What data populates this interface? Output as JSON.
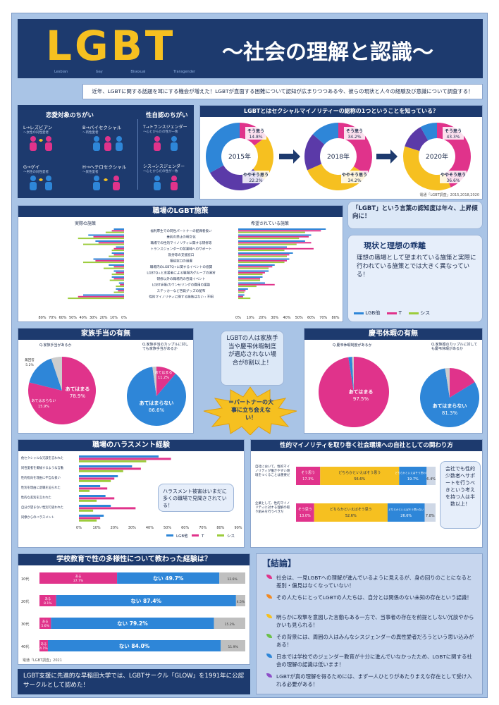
{
  "header": {
    "title_logo": "LGBT",
    "subtitle": "〜社会の理解と認識〜",
    "logo_sub": [
      "Lesbian",
      "Gay",
      "Bisexual",
      "Transgender"
    ]
  },
  "intro": "近年、LGBTに関する話題を耳にする機会が増えた！LGBTが直面する困難について認知が広まりつつある今、彼らの現状と人々の経験及び意識について調査する！",
  "definitions": {
    "left_title": "恋愛対象のちがい",
    "right_title": "性自認のちがい",
    "items": [
      {
        "key": "L",
        "label": "L→レズビアン",
        "sub": "〜女性の同性愛者"
      },
      {
        "key": "B",
        "label": "B→バイセクシャル",
        "sub": "〜両性愛者"
      },
      {
        "key": "G",
        "label": "G→ゲイ",
        "sub": "〜男性の同性愛者"
      },
      {
        "key": "H",
        "label": "H→ヘテロセクシャル",
        "sub": "〜異性愛者"
      },
      {
        "key": "T",
        "label": "T→トランスジェンダー",
        "sub": "〜心とからだの性が一致"
      },
      {
        "key": "C",
        "label": "シス→シスジェンダー",
        "sub": "〜心とからだの性が一致"
      }
    ]
  },
  "awareness": {
    "title": "LGBTとはセクシャルマイノリティーの総称の1つということを知っている？",
    "source": "電通「LGBT調査」2015,2018,2020",
    "charts": [
      {
        "year": "2015年",
        "segments": [
          {
            "label": "そう思う",
            "value": 14.8
          },
          {
            "label": "ややそう思う",
            "value": 22.2
          },
          {
            "label": "あまりそう思わない",
            "value": 30.0
          },
          {
            "label": "そう思わない",
            "value": 33.0
          }
        ],
        "labels_shown": [
          "そう思う",
          "14.8%",
          "ややそう思う",
          "22.2%"
        ]
      },
      {
        "year": "2018年",
        "segments": [
          {
            "label": "そう思う",
            "value": 34.2
          },
          {
            "label": "ややそう思う",
            "value": 34.2
          },
          {
            "label": "あまりそう思わない",
            "value": 18.0
          },
          {
            "label": "そう思わない",
            "value": 13.6
          }
        ],
        "labels_shown": [
          "そう思う",
          "34.2%",
          "ややそう思う",
          "34.2%"
        ]
      },
      {
        "year": "2020年",
        "segments": [
          {
            "label": "そう思う",
            "value": 43.3
          },
          {
            "label": "ややそう思う",
            "value": 36.6
          },
          {
            "label": "あまりそう思わない",
            "value": 12.0
          },
          {
            "label": "そう思わない",
            "value": 8.1
          }
        ],
        "labels_shown": [
          "そう思う",
          "43.3%",
          "ややそう思う",
          "36.6%"
        ]
      }
    ],
    "callout": "「LGBT」という言葉の認知度は年々、上昇傾向に！"
  },
  "workplace": {
    "title": "職場のLGBT施策",
    "left_label": "実際の施策",
    "right_label": "希望されている施策",
    "items": [
      "福利厚生での同性パートナーの配偶者扱い",
      "差別の禁止の明文化",
      "職場での性的マイノリティに関する研修等",
      "トランスジェンダーの就業時へのサポート",
      "就労等の支援窓口",
      "相談窓口の設置",
      "職場内のLGBTQ+に関するイベントの協賛",
      "LGBTQ+と支援者による職場内グループの運営",
      "研修以外の職場内の啓発イベント",
      "LGBT手帳/カウンセリングの費用の援助",
      "ステッカーなど啓発グッズの配布",
      "性的マイノリティに関する施策はない・不明"
    ],
    "axis_left": [
      "80%",
      "70%",
      "60%",
      "50%",
      "40%",
      "30%",
      "20%",
      "10%",
      "0%"
    ],
    "axis_right": [
      "0%",
      "10%",
      "20%",
      "30%",
      "40%",
      "50%",
      "60%",
      "70%",
      "80%"
    ],
    "legend": [
      {
        "name": "LGB他",
        "color": "#2e86d8"
      },
      {
        "name": "T",
        "color": "#e0338b"
      },
      {
        "name": "シス",
        "color": "#9ccc3c"
      }
    ],
    "legend_subs": [
      "(ゲイ・バイ・アセクシャル等)",
      "(トランスジェンダー)",
      "(シスジェンダー)"
    ]
  },
  "gap": {
    "title": "現状と理想の乖離",
    "body": "理想の職場として望まれている施策と実際に行われている施策とでは大きく異なっている！"
  },
  "family": {
    "title": "家族手当の有無",
    "q1": "Q.家族手当があるか",
    "q2": "Q.家族手当のカップルに対しても家族手当があるか",
    "pie1": [
      {
        "label": "あてはまる",
        "value": 78.9
      },
      {
        "label": "あてはまらない",
        "value": 15.9
      },
      {
        "label": "無回答",
        "value": 5.2
      }
    ],
    "pie2": [
      {
        "label": "あてはまる",
        "value": 11.2
      },
      {
        "label": "あてはまらない",
        "value": 86.6
      },
      {
        "label": "無回答",
        "value": 2.2
      }
    ],
    "labels": {
      "a": "あてはまる",
      "a_v": "78.9%",
      "b": "あてはまらない",
      "b_v": "15.9%",
      "c": "無回答",
      "c_v": "5.2%",
      "d": "あてはまらない",
      "d_v": "86.6%",
      "e": "あてはまる",
      "e_v": "11.2%"
    }
  },
  "center_bubble": "LGBTの人は家族手当や慶弔休暇制度が適応されない場合が8割以上！",
  "starburst": "＝パートナーの大事に立ち会えない！",
  "condolence": {
    "title": "慶弔休暇の有無",
    "q1": "Q.慶弔休暇制度があるか",
    "q2": "Q.家族婚のカップルに対しても慶弔休暇があるか",
    "pie1": [
      {
        "label": "あてはまる",
        "value": 97.5
      },
      {
        "label": "あてはまらない",
        "value": 1.7
      },
      {
        "label": "無回答",
        "value": 0.8
      }
    ],
    "pie2": [
      {
        "label": "あてはまる",
        "value": 16.2
      },
      {
        "label": "あてはまらない",
        "value": 81.3
      },
      {
        "label": "無回答",
        "value": 2.5
      }
    ],
    "labels": {
      "a": "あてはまる",
      "a_v": "97.5%",
      "b": "あてはまらない",
      "b_v": "81.3%"
    }
  },
  "harassment": {
    "title": "職場のハラスメント経験",
    "items": [
      "他セクシャルな冗談を言われた",
      "同性愛者を揶揄するような言動",
      "性的指向を理由に不当な扱い",
      "性別を理由に退職を迫られた",
      "性的な差別を言われた",
      "自分が望まない性別で扱われた",
      "同僚からのハラスメント"
    ],
    "axis": [
      "0%",
      "10%",
      "20%",
      "30%",
      "40%",
      "50%",
      "60%",
      "70%",
      "80%",
      "90%"
    ],
    "callout": "ハラスメント被害はいまだに多くの職場で見聞きされている！",
    "legend": [
      {
        "name": "LGB他",
        "color": "#2e86d8"
      },
      {
        "name": "T",
        "color": "#e0338b"
      },
      {
        "name": "シス",
        "color": "#9ccc3c"
      }
    ]
  },
  "company": {
    "title": "性的マイノリティを取り巻く社会環境への自社としての関わり方",
    "row1_label": "自社において、性的マイノリティが働きやすい環境をつくることは重要だ",
    "row2_label": "企業として、性的マイノリティに対する理解の取り組みを行うべきだ",
    "row1": [
      {
        "label": "そう思う",
        "value": 17.3
      },
      {
        "label": "どちらかといえばそう思う",
        "value": 56.6
      },
      {
        "label": "どちらかといえばそう思わない",
        "value": 19.7
      },
      {
        "label": "",
        "value": 6.4
      }
    ],
    "row2": [
      {
        "label": "そう思う",
        "value": 13.0
      },
      {
        "label": "どちらかといえばそう思う",
        "value": 52.6
      },
      {
        "label": "どちらかといえばそう思わない",
        "value": 26.6
      },
      {
        "label": "",
        "value": 7.8
      }
    ],
    "callout": "会社でも性的少数者へサポートを行うべきという考えを持つ人は半数以上！"
  },
  "education": {
    "title": "学校教育で性の多様性について教わった経験は？",
    "rows": [
      {
        "age": "10代",
        "yes": 37.7,
        "no": 49.7,
        "unknown": 12.6,
        "yes_label": "ある",
        "no_label": "ない 49.7%"
      },
      {
        "age": "20代",
        "yes": 8.1,
        "no": 87.4,
        "unknown": 4.5,
        "yes_label": "ある",
        "no_label": "ない 87.4%"
      },
      {
        "age": "30代",
        "yes": 5.6,
        "no": 79.2,
        "unknown": 15.2,
        "yes_label": "ある",
        "no_label": "ない 79.2%"
      },
      {
        "age": "40代",
        "yes": 4.1,
        "no": 84.0,
        "unknown": 11.9,
        "yes_label": "ある",
        "no_label": "ない 84.0%"
      }
    ],
    "source": "電通「LGBT調査」2021"
  },
  "glow": "LGBT支援に先進的な早稲田大学では、LGBTサークル「GLOW」を1991年に公認サークルとして認めた！",
  "conclusion": {
    "title": "【結論】",
    "items": [
      {
        "color": "#e0338b",
        "text": "社会は、一見LGBTへの理解が進んでいるように見えるが、身の回りのことになると差別・偏見はなくなっていない！"
      },
      {
        "color": "#f08a24",
        "text": "その人たちにとってLGBTの人たちは、自分とは関係のない未知の存在という認識！"
      },
      {
        "color": "#f6c020",
        "text": "明らかに攻撃を意図した言動もある一方で、当事者の存在を前提としない冗談やからかいも見られる！"
      },
      {
        "color": "#6cc04a",
        "text": "その背景には、周囲の人はみんなシスジェンダーの異性愛者だろうという思い込みがある！"
      },
      {
        "color": "#2e86d8",
        "text": "日本では学校でのジェンダー教育が十分に進んでいなかったため、LGBTに関する社会の理解の認識は低いまま！"
      },
      {
        "color": "#8e4fc8",
        "text": "LGBTが真の理解を得るためには、まず一人ひとりがあたりまえな存在として受け入れる必要がある！"
      }
    ]
  },
  "colors": {
    "navy": "#1d3a6e",
    "blue": "#2e86d8",
    "pink": "#e0338b",
    "yellow": "#f6c020",
    "purple": "#5b3aa8",
    "green": "#9ccc3c"
  }
}
